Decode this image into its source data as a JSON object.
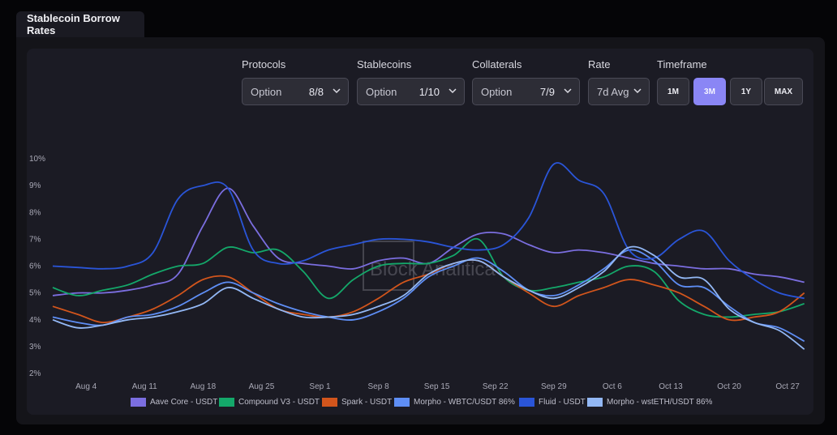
{
  "tab": {
    "title": "Stablecoin Borrow Rates"
  },
  "controls": {
    "protocols": {
      "label": "Protocols",
      "option": "Option",
      "count": "8/8"
    },
    "stablecoins": {
      "label": "Stablecoins",
      "option": "Option",
      "count": "1/10"
    },
    "collaterals": {
      "label": "Collaterals",
      "option": "Option",
      "count": "7/9"
    },
    "rate": {
      "label": "Rate",
      "value": "7d Avg"
    },
    "timeframe": {
      "label": "Timeframe",
      "options": [
        "1M",
        "3M",
        "1Y",
        "MAX"
      ],
      "selected": "3M"
    }
  },
  "watermark": "Block Analitica",
  "colors": {
    "aave": "#7b6ee0",
    "compound": "#14a86a",
    "spark": "#d2551c",
    "morpho_wbtc": "#5e8ef5",
    "fluid": "#2a55d8",
    "morpho_wsteth": "#93b8f5"
  },
  "chart_data": {
    "type": "line",
    "title": "Stablecoin Borrow Rates",
    "xlabel": "",
    "ylabel": "",
    "ylim": [
      2,
      10
    ],
    "y_ticks": [
      "2%",
      "3%",
      "4%",
      "5%",
      "6%",
      "7%",
      "8%",
      "9%",
      "10%"
    ],
    "x_ticks": [
      "Aug 4",
      "Aug 11",
      "Aug 18",
      "Aug 25",
      "Sep 1",
      "Sep 8",
      "Sep 15",
      "Sep 22",
      "Sep 29",
      "Oct 6",
      "Oct 13",
      "Oct 20",
      "Oct 27"
    ],
    "x_tick_days": [
      4,
      11,
      18,
      25,
      32,
      39,
      46,
      53,
      60,
      67,
      74,
      81,
      88
    ],
    "x_range_days": [
      0,
      91
    ],
    "x": [
      0,
      3,
      6,
      9,
      12,
      15,
      18,
      21,
      24,
      27,
      30,
      33,
      36,
      39,
      42,
      45,
      48,
      51,
      54,
      57,
      60,
      63,
      66,
      69,
      72,
      75,
      78,
      81,
      84,
      87,
      90
    ],
    "series": [
      {
        "name": "Aave Core - USDT",
        "color_key": "aave",
        "values": [
          4.9,
          5.0,
          5.0,
          5.1,
          5.3,
          5.7,
          7.5,
          8.9,
          7.5,
          6.3,
          6.1,
          6.0,
          5.9,
          6.2,
          6.3,
          6.1,
          6.7,
          7.2,
          7.2,
          6.8,
          6.5,
          6.6,
          6.5,
          6.3,
          6.1,
          6.0,
          5.9,
          5.9,
          5.7,
          5.6,
          5.4
        ]
      },
      {
        "name": "Compound V3 - USDT",
        "color_key": "compound",
        "values": [
          5.2,
          4.9,
          5.1,
          5.3,
          5.7,
          6.0,
          6.1,
          6.7,
          6.5,
          6.6,
          5.8,
          4.8,
          5.5,
          6.0,
          6.1,
          6.1,
          6.4,
          7.0,
          5.6,
          5.1,
          5.2,
          5.4,
          5.6,
          6.0,
          5.8,
          4.7,
          4.2,
          4.1,
          4.2,
          4.3,
          4.6
        ]
      },
      {
        "name": "Spark - USDT",
        "color_key": "spark",
        "values": [
          4.5,
          4.2,
          3.9,
          4.1,
          4.4,
          4.9,
          5.5,
          5.6,
          5.0,
          4.4,
          4.2,
          4.1,
          4.3,
          4.8,
          5.4,
          5.7,
          6.1,
          6.2,
          5.6,
          5.0,
          4.5,
          4.9,
          5.2,
          5.5,
          5.3,
          5.0,
          4.5,
          4.0,
          4.1,
          4.3,
          5.0
        ]
      },
      {
        "name": "Morpho - WBTC/USDT 86%",
        "color_key": "morpho_wbtc",
        "values": [
          4.1,
          3.9,
          3.8,
          4.1,
          4.2,
          4.5,
          5.0,
          5.4,
          5.0,
          4.6,
          4.3,
          4.1,
          4.0,
          4.3,
          4.8,
          5.6,
          6.0,
          6.3,
          5.8,
          5.1,
          4.9,
          5.3,
          5.9,
          6.6,
          6.2,
          5.3,
          5.2,
          4.5,
          3.9,
          3.7,
          3.2
        ]
      },
      {
        "name": "Fluid - USDT",
        "color_key": "fluid",
        "values": [
          6.0,
          5.95,
          5.9,
          6.0,
          6.5,
          8.5,
          9.0,
          8.9,
          6.6,
          6.1,
          6.2,
          6.6,
          6.8,
          7.0,
          7.0,
          6.9,
          6.7,
          6.6,
          6.8,
          7.8,
          9.8,
          9.2,
          8.7,
          6.6,
          6.3,
          7.0,
          7.3,
          6.2,
          5.5,
          5.0,
          4.8
        ]
      },
      {
        "name": "Morpho - wstETH/USDT 86%",
        "color_key": "morpho_wsteth",
        "values": [
          4.0,
          3.7,
          3.8,
          4.0,
          4.1,
          4.3,
          4.6,
          5.2,
          4.8,
          4.4,
          4.1,
          4.1,
          4.2,
          4.5,
          4.9,
          5.7,
          6.1,
          6.2,
          5.6,
          5.1,
          4.8,
          5.2,
          5.8,
          6.7,
          6.4,
          5.6,
          5.5,
          4.4,
          3.9,
          3.6,
          2.9
        ]
      }
    ]
  }
}
